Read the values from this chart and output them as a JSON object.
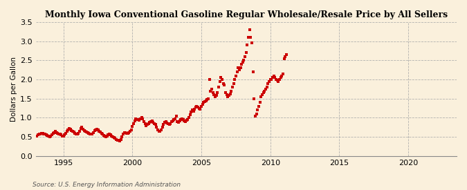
{
  "title": "Monthly Iowa Conventional Gasoline Regular Wholesale/Resale Price by All Sellers",
  "ylabel": "Dollars per Gallon",
  "source": "Source: U.S. Energy Information Administration",
  "bg_color": "#FAF0DC",
  "marker_color": "#CC0000",
  "xlim": [
    1993.0,
    2023.5
  ],
  "ylim": [
    0.0,
    3.5
  ],
  "yticks": [
    0.0,
    0.5,
    1.0,
    1.5,
    2.0,
    2.5,
    3.0,
    3.5
  ],
  "xticks": [
    1995,
    2000,
    2005,
    2010,
    2015,
    2020
  ],
  "data": [
    [
      1993.0,
      0.52
    ],
    [
      1993.08,
      0.53
    ],
    [
      1993.17,
      0.56
    ],
    [
      1993.25,
      0.58
    ],
    [
      1993.33,
      0.57
    ],
    [
      1993.42,
      0.6
    ],
    [
      1993.5,
      0.59
    ],
    [
      1993.58,
      0.58
    ],
    [
      1993.67,
      0.57
    ],
    [
      1993.75,
      0.55
    ],
    [
      1993.83,
      0.54
    ],
    [
      1993.92,
      0.52
    ],
    [
      1994.0,
      0.51
    ],
    [
      1994.08,
      0.52
    ],
    [
      1994.17,
      0.55
    ],
    [
      1994.25,
      0.6
    ],
    [
      1994.33,
      0.62
    ],
    [
      1994.42,
      0.64
    ],
    [
      1994.5,
      0.61
    ],
    [
      1994.58,
      0.59
    ],
    [
      1994.67,
      0.58
    ],
    [
      1994.75,
      0.57
    ],
    [
      1994.83,
      0.55
    ],
    [
      1994.92,
      0.52
    ],
    [
      1995.0,
      0.53
    ],
    [
      1995.08,
      0.55
    ],
    [
      1995.17,
      0.6
    ],
    [
      1995.25,
      0.65
    ],
    [
      1995.33,
      0.68
    ],
    [
      1995.42,
      0.72
    ],
    [
      1995.5,
      0.7
    ],
    [
      1995.58,
      0.67
    ],
    [
      1995.67,
      0.65
    ],
    [
      1995.75,
      0.63
    ],
    [
      1995.83,
      0.6
    ],
    [
      1995.92,
      0.57
    ],
    [
      1996.0,
      0.58
    ],
    [
      1996.08,
      0.6
    ],
    [
      1996.17,
      0.65
    ],
    [
      1996.25,
      0.72
    ],
    [
      1996.33,
      0.75
    ],
    [
      1996.42,
      0.7
    ],
    [
      1996.5,
      0.67
    ],
    [
      1996.58,
      0.65
    ],
    [
      1996.67,
      0.63
    ],
    [
      1996.75,
      0.62
    ],
    [
      1996.83,
      0.6
    ],
    [
      1996.92,
      0.58
    ],
    [
      1997.0,
      0.57
    ],
    [
      1997.08,
      0.58
    ],
    [
      1997.17,
      0.62
    ],
    [
      1997.25,
      0.66
    ],
    [
      1997.33,
      0.68
    ],
    [
      1997.42,
      0.7
    ],
    [
      1997.5,
      0.68
    ],
    [
      1997.58,
      0.65
    ],
    [
      1997.67,
      0.63
    ],
    [
      1997.75,
      0.6
    ],
    [
      1997.83,
      0.58
    ],
    [
      1997.92,
      0.54
    ],
    [
      1998.0,
      0.52
    ],
    [
      1998.08,
      0.51
    ],
    [
      1998.17,
      0.52
    ],
    [
      1998.25,
      0.55
    ],
    [
      1998.33,
      0.57
    ],
    [
      1998.42,
      0.55
    ],
    [
      1998.5,
      0.52
    ],
    [
      1998.58,
      0.5
    ],
    [
      1998.67,
      0.48
    ],
    [
      1998.75,
      0.46
    ],
    [
      1998.83,
      0.44
    ],
    [
      1998.92,
      0.42
    ],
    [
      1999.0,
      0.41
    ],
    [
      1999.08,
      0.4
    ],
    [
      1999.17,
      0.43
    ],
    [
      1999.25,
      0.5
    ],
    [
      1999.33,
      0.58
    ],
    [
      1999.42,
      0.62
    ],
    [
      1999.5,
      0.62
    ],
    [
      1999.58,
      0.6
    ],
    [
      1999.67,
      0.6
    ],
    [
      1999.75,
      0.62
    ],
    [
      1999.83,
      0.65
    ],
    [
      1999.92,
      0.68
    ],
    [
      2000.0,
      0.78
    ],
    [
      2000.08,
      0.85
    ],
    [
      2000.17,
      0.92
    ],
    [
      2000.25,
      0.98
    ],
    [
      2000.33,
      0.96
    ],
    [
      2000.42,
      0.95
    ],
    [
      2000.5,
      0.93
    ],
    [
      2000.58,
      0.98
    ],
    [
      2000.67,
      1.0
    ],
    [
      2000.75,
      0.97
    ],
    [
      2000.83,
      0.9
    ],
    [
      2000.92,
      0.85
    ],
    [
      2001.0,
      0.8
    ],
    [
      2001.08,
      0.82
    ],
    [
      2001.17,
      0.85
    ],
    [
      2001.25,
      0.88
    ],
    [
      2001.33,
      0.9
    ],
    [
      2001.42,
      0.92
    ],
    [
      2001.5,
      0.88
    ],
    [
      2001.58,
      0.85
    ],
    [
      2001.67,
      0.83
    ],
    [
      2001.75,
      0.75
    ],
    [
      2001.83,
      0.68
    ],
    [
      2001.92,
      0.65
    ],
    [
      2002.0,
      0.65
    ],
    [
      2002.08,
      0.68
    ],
    [
      2002.17,
      0.75
    ],
    [
      2002.25,
      0.82
    ],
    [
      2002.33,
      0.88
    ],
    [
      2002.42,
      0.9
    ],
    [
      2002.5,
      0.87
    ],
    [
      2002.58,
      0.85
    ],
    [
      2002.67,
      0.83
    ],
    [
      2002.75,
      0.85
    ],
    [
      2002.83,
      0.9
    ],
    [
      2002.92,
      0.92
    ],
    [
      2003.0,
      0.95
    ],
    [
      2003.08,
      0.98
    ],
    [
      2003.17,
      1.05
    ],
    [
      2003.25,
      0.9
    ],
    [
      2003.33,
      0.88
    ],
    [
      2003.42,
      0.92
    ],
    [
      2003.5,
      0.95
    ],
    [
      2003.58,
      0.97
    ],
    [
      2003.67,
      0.95
    ],
    [
      2003.75,
      0.92
    ],
    [
      2003.83,
      0.9
    ],
    [
      2003.92,
      0.93
    ],
    [
      2004.0,
      0.95
    ],
    [
      2004.08,
      1.0
    ],
    [
      2004.17,
      1.08
    ],
    [
      2004.25,
      1.15
    ],
    [
      2004.33,
      1.2
    ],
    [
      2004.42,
      1.18
    ],
    [
      2004.5,
      1.22
    ],
    [
      2004.58,
      1.28
    ],
    [
      2004.67,
      1.3
    ],
    [
      2004.75,
      1.28
    ],
    [
      2004.83,
      1.25
    ],
    [
      2004.92,
      1.22
    ],
    [
      2005.0,
      1.3
    ],
    [
      2005.08,
      1.35
    ],
    [
      2005.17,
      1.4
    ],
    [
      2005.25,
      1.42
    ],
    [
      2005.33,
      1.45
    ],
    [
      2005.42,
      1.48
    ],
    [
      2005.5,
      1.5
    ],
    [
      2005.58,
      2.0
    ],
    [
      2005.67,
      1.7
    ],
    [
      2005.75,
      1.75
    ],
    [
      2005.83,
      1.65
    ],
    [
      2005.92,
      1.6
    ],
    [
      2006.0,
      1.55
    ],
    [
      2006.08,
      1.58
    ],
    [
      2006.17,
      1.65
    ],
    [
      2006.25,
      1.8
    ],
    [
      2006.33,
      1.95
    ],
    [
      2006.42,
      2.05
    ],
    [
      2006.5,
      2.0
    ],
    [
      2006.58,
      1.9
    ],
    [
      2006.67,
      1.85
    ],
    [
      2006.75,
      1.65
    ],
    [
      2006.83,
      1.6
    ],
    [
      2006.92,
      1.55
    ],
    [
      2007.0,
      1.58
    ],
    [
      2007.08,
      1.62
    ],
    [
      2007.17,
      1.7
    ],
    [
      2007.25,
      1.8
    ],
    [
      2007.33,
      1.9
    ],
    [
      2007.42,
      2.0
    ],
    [
      2007.5,
      2.1
    ],
    [
      2007.58,
      2.2
    ],
    [
      2007.67,
      2.3
    ],
    [
      2007.75,
      2.25
    ],
    [
      2007.83,
      2.3
    ],
    [
      2007.92,
      2.4
    ],
    [
      2008.0,
      2.45
    ],
    [
      2008.08,
      2.5
    ],
    [
      2008.17,
      2.6
    ],
    [
      2008.25,
      2.7
    ],
    [
      2008.33,
      2.9
    ],
    [
      2008.42,
      3.1
    ],
    [
      2008.5,
      3.3
    ],
    [
      2008.58,
      3.1
    ],
    [
      2008.67,
      2.95
    ],
    [
      2008.75,
      2.2
    ],
    [
      2008.83,
      1.5
    ],
    [
      2008.92,
      1.05
    ],
    [
      2009.0,
      1.1
    ],
    [
      2009.08,
      1.2
    ],
    [
      2009.17,
      1.3
    ],
    [
      2009.25,
      1.4
    ],
    [
      2009.33,
      1.55
    ],
    [
      2009.42,
      1.6
    ],
    [
      2009.5,
      1.65
    ],
    [
      2009.58,
      1.7
    ],
    [
      2009.67,
      1.75
    ],
    [
      2009.75,
      1.8
    ],
    [
      2009.83,
      1.9
    ],
    [
      2009.92,
      1.95
    ],
    [
      2010.0,
      2.0
    ],
    [
      2010.08,
      2.0
    ],
    [
      2010.17,
      2.05
    ],
    [
      2010.25,
      2.1
    ],
    [
      2010.33,
      2.05
    ],
    [
      2010.42,
      2.0
    ],
    [
      2010.5,
      1.98
    ],
    [
      2010.58,
      1.95
    ],
    [
      2010.67,
      2.0
    ],
    [
      2010.75,
      2.05
    ],
    [
      2010.83,
      2.1
    ],
    [
      2010.92,
      2.15
    ],
    [
      2011.0,
      2.55
    ],
    [
      2011.08,
      2.6
    ],
    [
      2011.17,
      2.65
    ]
  ]
}
